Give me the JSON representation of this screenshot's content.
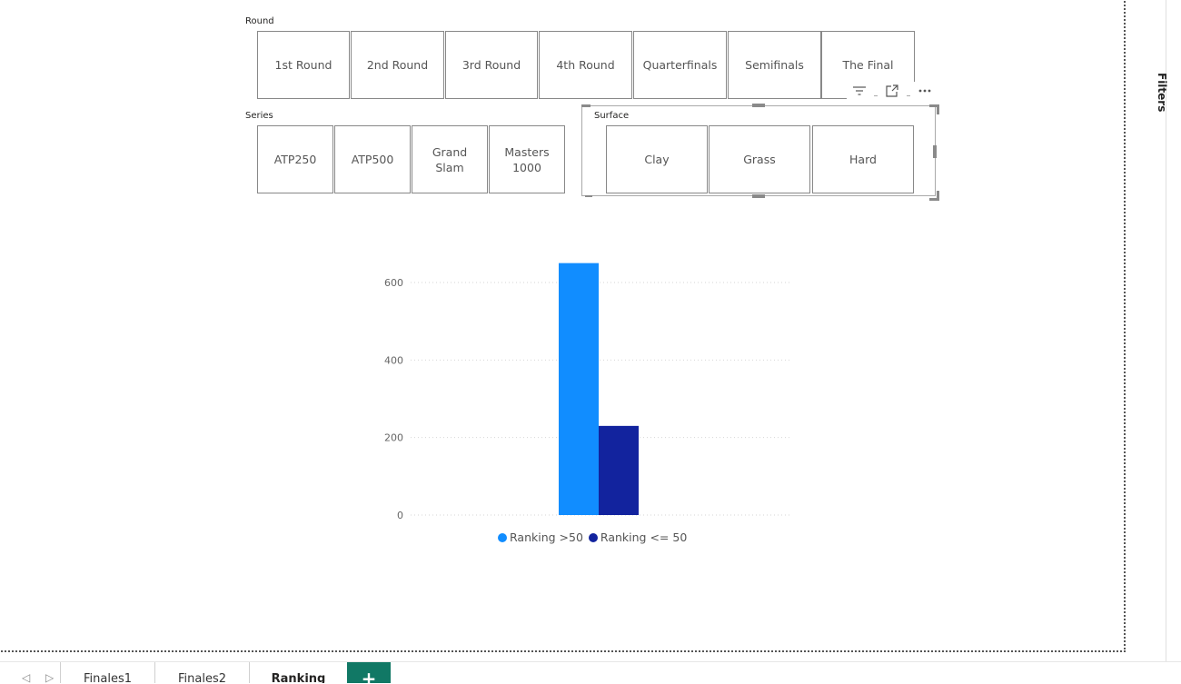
{
  "slicers": {
    "round": {
      "title": "Round",
      "items": [
        "1st Round",
        "2nd Round",
        "3rd Round",
        "4th Round",
        "Quarterfinals",
        "Semifinals",
        "The Final"
      ]
    },
    "series": {
      "title": "Series",
      "items": [
        "ATP250",
        "ATP500",
        "Grand Slam",
        "Masters 1000"
      ]
    },
    "surface": {
      "title": "Surface",
      "items": [
        "Clay",
        "Grass",
        "Hard"
      ]
    }
  },
  "visual_header": {
    "filter_icon": "filter-icon",
    "focus_icon": "focus-mode-icon",
    "more_icon": "more-options-icon"
  },
  "right_pane": {
    "label": "Filters"
  },
  "chart_data": {
    "type": "bar",
    "categories": [
      ""
    ],
    "series": [
      {
        "name": "Ranking >50",
        "values": [
          650
        ],
        "color": "#118DFF"
      },
      {
        "name": "Ranking <= 50",
        "values": [
          230
        ],
        "color": "#12239E"
      }
    ],
    "yticks": [
      0,
      200,
      400,
      600
    ],
    "ylim": [
      0,
      650
    ],
    "grid": true,
    "legend": "bottom-center"
  },
  "tabs": {
    "items": [
      {
        "label": "Finales1",
        "active": false
      },
      {
        "label": "Finales2",
        "active": false
      },
      {
        "label": "Ranking",
        "active": true
      }
    ],
    "add_label": "+"
  }
}
